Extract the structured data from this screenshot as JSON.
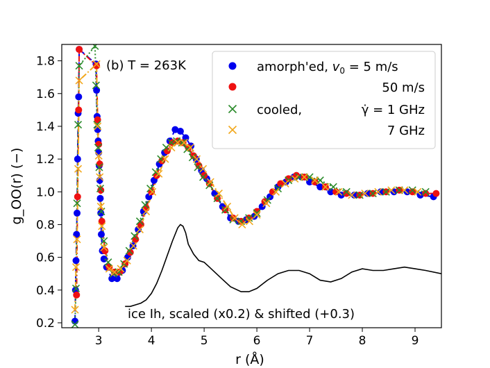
{
  "chart_data": {
    "type": "line",
    "panel_label": "(b) T = 263K",
    "xlabel": "r  (Å)",
    "ylabel": "g_OO(r)  (−)",
    "xlim": [
      2.3,
      9.5
    ],
    "ylim": [
      0.17,
      1.9
    ],
    "x_ticks": [
      3,
      4,
      5,
      6,
      7,
      8,
      9
    ],
    "x_tick_labels": [
      "3",
      "4",
      "5",
      "6",
      "7",
      "8",
      "9"
    ],
    "y_ticks": [
      0.2,
      0.4,
      0.6,
      0.8,
      1.0,
      1.2,
      1.4,
      1.6,
      1.8
    ],
    "y_tick_labels": [
      "0.2",
      "0.4",
      "0.6",
      "0.8",
      "1.0",
      "1.2",
      "1.4",
      "1.6",
      "1.8"
    ],
    "grid": false,
    "legend_position": "top-right",
    "colors": {
      "blue": "#0000ee",
      "red": "#ee1111",
      "green": "#2a8a2a",
      "orange": "#f2a81d",
      "ice": "#000000"
    },
    "legend": [
      {
        "marker": "circle",
        "color": "#0000ee",
        "label_pre": "amorph'ed, ",
        "label_var": "v",
        "label_sub": "0",
        "label_post": " = 5 m/s"
      },
      {
        "marker": "circle",
        "color": "#ee1111",
        "label_pre": "50 m/s"
      },
      {
        "marker": "cross",
        "color": "#2a8a2a",
        "label_pre": "cooled,",
        "label_rate": "γ̇ = 1 GHz"
      },
      {
        "marker": "cross",
        "color": "#f2a81d",
        "label_pre": "7 GHz"
      }
    ],
    "series": [
      {
        "name": "amorph'ed, v0 = 5 m/s",
        "marker": "circle",
        "color": "#0000ee",
        "line": "dashed",
        "x": [
          2.55,
          2.56,
          2.57,
          2.58,
          2.59,
          2.6,
          2.61,
          2.62,
          2.63,
          2.95,
          2.96,
          2.97,
          2.98,
          2.99,
          3.0,
          3.01,
          3.02,
          3.03,
          3.04,
          3.05,
          3.07,
          3.1,
          3.15,
          3.25,
          3.35,
          3.45,
          3.55,
          3.65,
          3.75,
          3.85,
          3.95,
          4.05,
          4.15,
          4.25,
          4.35,
          4.45,
          4.55,
          4.65,
          4.75,
          4.85,
          4.95,
          5.05,
          5.2,
          5.35,
          5.5,
          5.65,
          5.8,
          5.95,
          6.1,
          6.25,
          6.4,
          6.55,
          6.7,
          6.85,
          7.0,
          7.2,
          7.4,
          7.6,
          7.85,
          8.1,
          8.35,
          8.6,
          8.85,
          9.1,
          9.35
        ],
        "y": [
          0.21,
          0.4,
          0.58,
          0.74,
          0.87,
          1.2,
          1.48,
          1.58,
          1.87,
          1.78,
          1.62,
          1.46,
          1.38,
          1.31,
          1.24,
          1.16,
          1.07,
          0.96,
          0.87,
          0.74,
          0.64,
          0.59,
          0.54,
          0.47,
          0.47,
          0.52,
          0.6,
          0.67,
          0.77,
          0.88,
          0.97,
          1.07,
          1.17,
          1.24,
          1.31,
          1.38,
          1.37,
          1.33,
          1.28,
          1.2,
          1.13,
          1.08,
          0.99,
          0.91,
          0.84,
          0.82,
          0.83,
          0.85,
          0.91,
          0.97,
          1.03,
          1.06,
          1.09,
          1.09,
          1.06,
          1.03,
          1.0,
          0.98,
          0.98,
          0.99,
          1.0,
          1.0,
          1.0,
          0.98,
          0.97
        ]
      },
      {
        "name": "50 m/s",
        "marker": "circle",
        "color": "#ee1111",
        "line": "dashdot",
        "x": [
          2.58,
          2.6,
          2.62,
          2.63,
          2.96,
          2.98,
          3.0,
          3.02,
          3.04,
          3.06,
          3.12,
          3.2,
          3.3,
          3.4,
          3.5,
          3.6,
          3.7,
          3.8,
          3.9,
          4.0,
          4.1,
          4.2,
          4.3,
          4.4,
          4.5,
          4.6,
          4.7,
          4.8,
          4.9,
          5.0,
          5.1,
          5.25,
          5.4,
          5.55,
          5.7,
          5.85,
          6.0,
          6.15,
          6.3,
          6.45,
          6.6,
          6.75,
          6.9,
          7.1,
          7.3,
          7.5,
          7.7,
          7.95,
          8.2,
          8.45,
          8.7,
          8.95,
          9.2,
          9.4
        ],
        "y": [
          0.37,
          0.97,
          1.5,
          1.87,
          1.77,
          1.44,
          1.29,
          1.17,
          1.01,
          0.82,
          0.64,
          0.54,
          0.51,
          0.51,
          0.56,
          0.63,
          0.71,
          0.8,
          0.9,
          1.0,
          1.1,
          1.19,
          1.25,
          1.3,
          1.31,
          1.3,
          1.27,
          1.22,
          1.16,
          1.1,
          1.05,
          0.96,
          0.89,
          0.84,
          0.82,
          0.84,
          0.88,
          0.94,
          1.0,
          1.05,
          1.08,
          1.1,
          1.09,
          1.06,
          1.03,
          1.0,
          0.99,
          0.98,
          0.99,
          1.0,
          1.01,
          1.0,
          0.99,
          0.99
        ]
      },
      {
        "name": "cooled, γ̇ = 1 GHz",
        "marker": "cross",
        "color": "#2a8a2a",
        "line": "dotted",
        "x": [
          2.55,
          2.57,
          2.59,
          2.61,
          2.63,
          2.93,
          2.95,
          2.97,
          2.99,
          3.01,
          3.03,
          3.05,
          3.1,
          3.18,
          3.28,
          3.38,
          3.48,
          3.58,
          3.68,
          3.78,
          3.88,
          3.98,
          4.08,
          4.18,
          4.28,
          4.38,
          4.48,
          4.58,
          4.68,
          4.78,
          4.88,
          4.98,
          5.1,
          5.25,
          5.4,
          5.55,
          5.7,
          5.85,
          6.0,
          6.2,
          6.4,
          6.6,
          6.8,
          7.0,
          7.2,
          7.45,
          7.7,
          7.95,
          8.2,
          8.45,
          8.7,
          8.95,
          9.2
        ],
        "y": [
          0.19,
          0.41,
          0.93,
          1.41,
          1.77,
          1.89,
          1.65,
          1.41,
          1.27,
          1.15,
          1.02,
          0.88,
          0.7,
          0.57,
          0.5,
          0.51,
          0.56,
          0.64,
          0.73,
          0.82,
          0.92,
          1.02,
          1.12,
          1.2,
          1.27,
          1.3,
          1.31,
          1.3,
          1.26,
          1.21,
          1.15,
          1.09,
          1.04,
          0.96,
          0.89,
          0.83,
          0.82,
          0.84,
          0.87,
          0.95,
          1.02,
          1.07,
          1.09,
          1.09,
          1.07,
          1.03,
          1.0,
          0.98,
          0.99,
          1.0,
          1.01,
          1.01,
          1.0
        ]
      },
      {
        "name": "7 GHz",
        "marker": "cross",
        "color": "#f2a81d",
        "line": "dashdot",
        "x": [
          2.55,
          2.57,
          2.59,
          2.61,
          2.63,
          2.96,
          2.98,
          3.0,
          3.02,
          3.04,
          3.06,
          3.1,
          3.2,
          3.3,
          3.42,
          3.54,
          3.66,
          3.78,
          3.9,
          4.02,
          4.14,
          4.26,
          4.38,
          4.5,
          4.62,
          4.74,
          4.86,
          4.98,
          5.12,
          5.28,
          5.44,
          5.58,
          5.72,
          5.86,
          6.0,
          6.18,
          6.36,
          6.54,
          6.72,
          6.9,
          7.1,
          7.3,
          7.55,
          7.8,
          8.05,
          8.3,
          8.55,
          8.8,
          9.05
        ],
        "y": [
          0.28,
          0.54,
          0.71,
          1.14,
          1.68,
          1.78,
          1.4,
          1.22,
          1.09,
          0.91,
          0.79,
          0.66,
          0.53,
          0.51,
          0.53,
          0.58,
          0.67,
          0.77,
          0.88,
          1.0,
          1.11,
          1.2,
          1.27,
          1.3,
          1.3,
          1.27,
          1.2,
          1.14,
          1.06,
          0.99,
          0.91,
          0.84,
          0.8,
          0.82,
          0.86,
          0.93,
          1.0,
          1.05,
          1.08,
          1.09,
          1.07,
          1.03,
          1.0,
          0.98,
          0.99,
          1.0,
          1.01,
          1.01,
          1.0
        ]
      }
    ],
    "ice_curve": {
      "label": "ice Ih, scaled (x0.2) & shifted (+0.3)",
      "x": [
        3.5,
        3.6,
        3.7,
        3.8,
        3.9,
        4.0,
        4.1,
        4.2,
        4.3,
        4.4,
        4.5,
        4.55,
        4.6,
        4.65,
        4.7,
        4.8,
        4.9,
        5.0,
        5.1,
        5.2,
        5.3,
        5.5,
        5.7,
        5.85,
        6.0,
        6.2,
        6.4,
        6.6,
        6.8,
        7.0,
        7.2,
        7.4,
        7.6,
        7.8,
        8.0,
        8.2,
        8.4,
        8.6,
        8.8,
        9.0,
        9.2,
        9.5
      ],
      "y": [
        0.3,
        0.3,
        0.31,
        0.32,
        0.34,
        0.38,
        0.44,
        0.52,
        0.61,
        0.7,
        0.78,
        0.8,
        0.79,
        0.75,
        0.68,
        0.62,
        0.58,
        0.57,
        0.54,
        0.51,
        0.48,
        0.42,
        0.39,
        0.39,
        0.41,
        0.46,
        0.5,
        0.52,
        0.52,
        0.5,
        0.46,
        0.45,
        0.47,
        0.51,
        0.53,
        0.52,
        0.52,
        0.53,
        0.54,
        0.53,
        0.52,
        0.5
      ]
    }
  }
}
